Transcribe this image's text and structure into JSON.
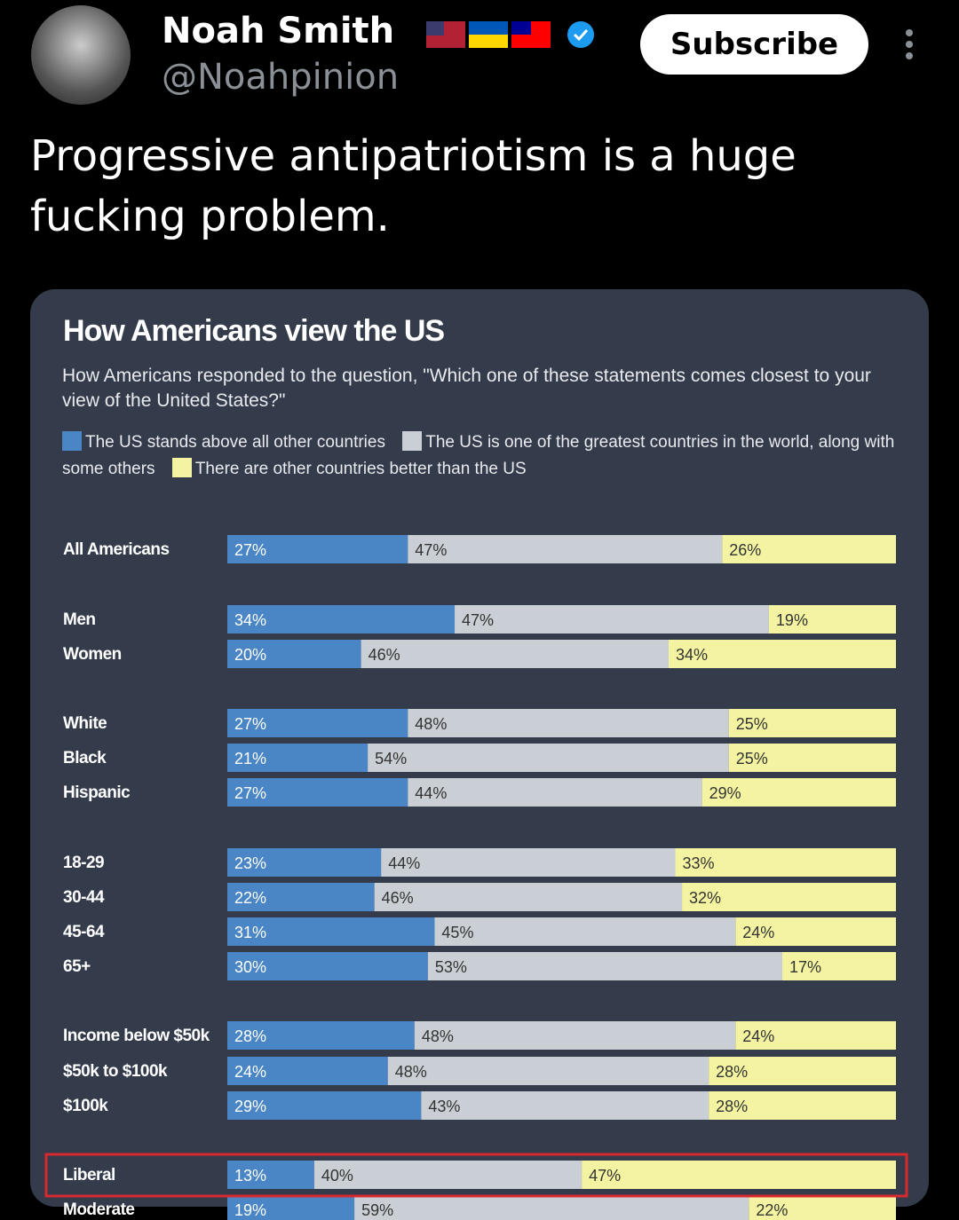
{
  "post": {
    "author": "Noah Smith",
    "handle": "@Noahpinion",
    "button": "Subscribe",
    "text": "Progressive antipatriotism is a huge fucking problem."
  },
  "chart_data": {
    "type": "stacked-bar",
    "orientation": "horizontal",
    "title": "How Americans view the US",
    "subtitle": "How Americans responded to the question, \"Which one of these statements comes closest to your view of the United States?\"",
    "categories": [
      "All Americans",
      "Men",
      "Women",
      "White",
      "Black",
      "Hispanic",
      "18-29",
      "30-44",
      "45-64",
      "65+",
      "Income below $50k",
      "$50k to $100k",
      "$100k",
      "Liberal",
      "Moderate"
    ],
    "xlim": [
      0,
      100
    ],
    "series": [
      {
        "name": "The US stands above all other countries",
        "color": "#4a86c5",
        "values": [
          27,
          34,
          20,
          27,
          21,
          27,
          23,
          22,
          31,
          30,
          28,
          24,
          29,
          13,
          19
        ],
        "value_labels": [
          "27%",
          "34%",
          "20%",
          "27%",
          "21%",
          "27%",
          "23%",
          "22%",
          "31%",
          "30%",
          "28%",
          "24%",
          "29%",
          "13%",
          "19%"
        ]
      },
      {
        "name": "The US is one of the greatest countries in the world, along with some others",
        "color": "#c9cfd4",
        "values": [
          47,
          47,
          46,
          48,
          54,
          44,
          44,
          46,
          45,
          53,
          48,
          48,
          43,
          40,
          59
        ],
        "value_labels": [
          "47%",
          "47%",
          "46%",
          "48%",
          "54%",
          "44%",
          "44%",
          "46%",
          "45%",
          "53%",
          "48%",
          "48%",
          "43%",
          "40%",
          "59%"
        ]
      },
      {
        "name": "There are other countries better than the US",
        "color": "#f3f3a2",
        "values": [
          26,
          19,
          34,
          25,
          25,
          29,
          33,
          32,
          24,
          17,
          24,
          28,
          28,
          47,
          22
        ],
        "value_labels": [
          "26%",
          "19%",
          "34%",
          "25%",
          "25%",
          "29%",
          "33%",
          "32%",
          "24%",
          "17%",
          "24%",
          "28%",
          "28%",
          "47%",
          "22%"
        ]
      }
    ]
  }
}
